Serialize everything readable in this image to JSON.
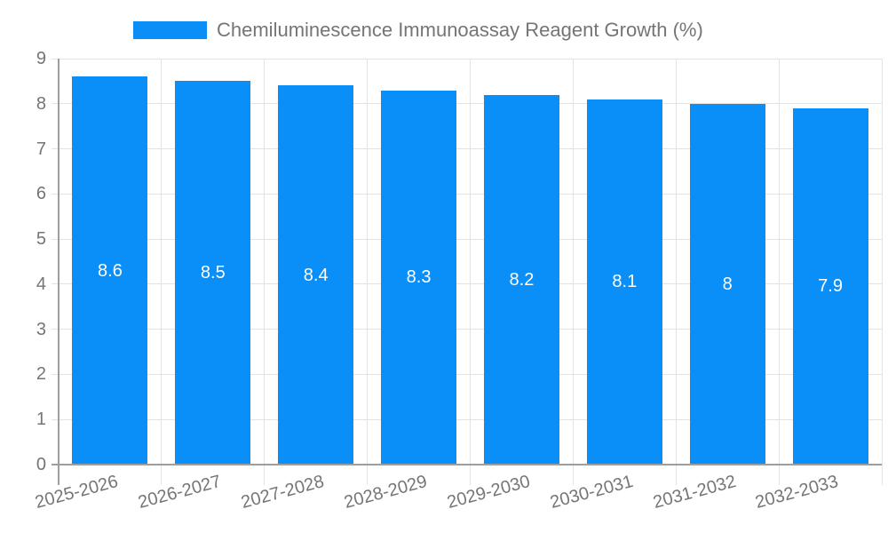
{
  "legend": {
    "label": "Chemiluminescence Immunoassay Reagent Growth (%)"
  },
  "colors": {
    "bar": "#0a8ef8",
    "grid": "#e3e3e3",
    "axis": "#9e9e9e",
    "tick_text": "#757575",
    "bar_label": "#ffffff",
    "background": "#ffffff"
  },
  "chart_data": {
    "type": "bar",
    "title": "Chemiluminescence Immunoassay Reagent Growth (%)",
    "categories": [
      "2025-2026",
      "2026-2027",
      "2027-2028",
      "2028-2029",
      "2029-2030",
      "2030-2031",
      "2031-2032",
      "2032-2033"
    ],
    "series": [
      {
        "name": "Chemiluminescence Immunoassay Reagent Growth (%)",
        "values": [
          8.6,
          8.5,
          8.4,
          8.3,
          8.2,
          8.1,
          8,
          7.9
        ]
      }
    ],
    "value_labels": [
      "8.6",
      "8.5",
      "8.4",
      "8.3",
      "8.2",
      "8.1",
      "8",
      "7.9"
    ],
    "xlabel": "",
    "ylabel": "",
    "ylim": [
      0,
      9
    ],
    "y_ticks": [
      0,
      1,
      2,
      3,
      4,
      5,
      6,
      7,
      8,
      9
    ],
    "grid": true,
    "legend_position": "top",
    "value_labels_inside_bars": true
  }
}
